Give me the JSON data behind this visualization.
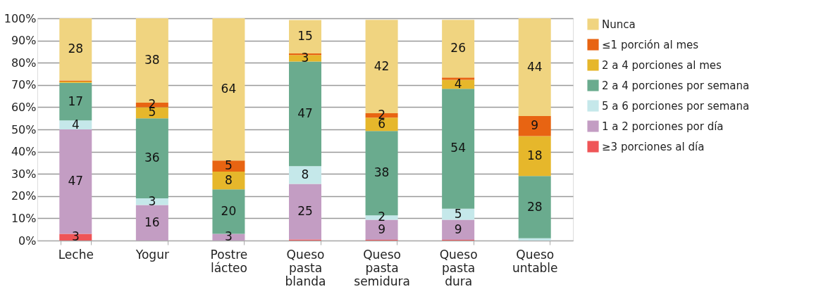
{
  "chart_data": {
    "type": "bar",
    "stacked": true,
    "categories": [
      "Leche",
      "Yogur",
      "Postre lácteo",
      "Queso pasta blanda",
      "Queso pasta semidura",
      "Queso pasta dura",
      "Queso untable"
    ],
    "series": [
      {
        "name": "≥3 porciones al día",
        "color": "#ef5557",
        "values": [
          3,
          0,
          0,
          0.5,
          0.3,
          0.3,
          0
        ],
        "value_labels": [
          "3",
          null,
          null,
          null,
          null,
          null,
          null
        ]
      },
      {
        "name": "1 a 2 porciones por día",
        "color": "#c39dc3",
        "values": [
          47,
          16,
          3,
          25,
          9,
          9,
          0
        ],
        "value_labels": [
          "47",
          "16",
          "3",
          "25",
          "9",
          "9",
          null
        ]
      },
      {
        "name": "5 a 6 porciones por semana",
        "color": "#c5e8ea",
        "values": [
          4,
          3,
          0,
          8,
          2,
          5,
          1
        ],
        "value_labels": [
          "4",
          "3",
          null,
          "8",
          "2",
          "5",
          null
        ]
      },
      {
        "name": "2 a 4 porciones por semana",
        "color": "#6aab8e",
        "values": [
          17,
          36,
          20,
          47,
          38,
          54,
          28
        ],
        "value_labels": [
          "17",
          "36",
          "20",
          "47",
          "38",
          "54",
          "28"
        ]
      },
      {
        "name": "2 a 4 porciones al mes",
        "color": "#e6b72b",
        "values": [
          0.5,
          5,
          8,
          3,
          6,
          4,
          18
        ],
        "value_labels": [
          null,
          "5",
          "8",
          "3",
          "6",
          "4",
          "18"
        ]
      },
      {
        "name": "≤1 porción al mes",
        "color": "#e86412",
        "values": [
          0.5,
          2,
          5,
          0.7,
          2,
          1,
          9
        ],
        "value_labels": [
          null,
          "2",
          "5",
          null,
          "2",
          null,
          "9"
        ]
      },
      {
        "name": "Nunca",
        "color": "#f0d480",
        "values": [
          28,
          38,
          64,
          15,
          42,
          26,
          44
        ],
        "value_labels": [
          "28",
          "38",
          "64",
          "15",
          "42",
          "26",
          "44"
        ]
      }
    ],
    "ylim": [
      0,
      100
    ],
    "yticks": [
      {
        "value": 0,
        "label": "0%"
      },
      {
        "value": 10,
        "label": "10%"
      },
      {
        "value": 20,
        "label": "20%"
      },
      {
        "value": 30,
        "label": "30%"
      },
      {
        "value": 40,
        "label": "40%"
      },
      {
        "value": 50,
        "label": "50%"
      },
      {
        "value": 60,
        "label": "60%"
      },
      {
        "value": 70,
        "label": "70%"
      },
      {
        "value": 80,
        "label": "80%"
      },
      {
        "value": 90,
        "label": "90%"
      },
      {
        "value": 100,
        "label": "100%"
      }
    ],
    "grid": "y",
    "legend": "right"
  }
}
